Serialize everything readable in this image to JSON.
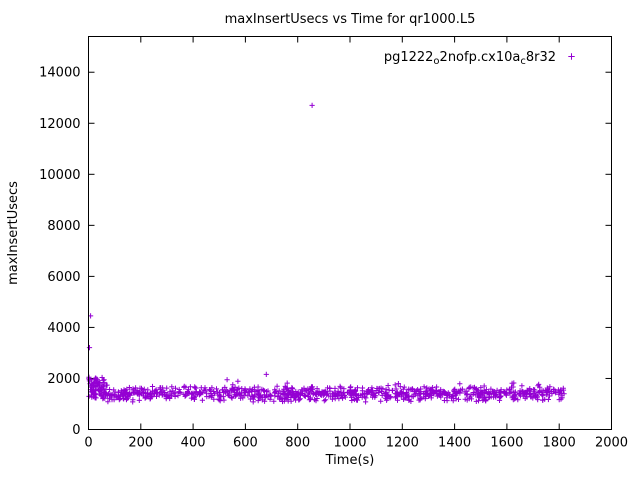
{
  "title": "maxInsertUsecs vs Time for qr1000.L5",
  "axes": {
    "xlabel": "Time(s)",
    "ylabel": "maxInsertUsecs",
    "xlim": [
      0,
      2000
    ],
    "ylim": [
      0,
      15400
    ],
    "xticks": [
      0,
      200,
      400,
      600,
      800,
      1000,
      1200,
      1400,
      1600,
      1800,
      2000
    ],
    "yticks": [
      0,
      2000,
      4000,
      6000,
      8000,
      10000,
      12000,
      14000
    ]
  },
  "legend": {
    "label_plain": "pg1222_o2nofp.cx10a_c8r32",
    "segments": [
      {
        "text": "pg1222",
        "sub": false
      },
      {
        "text": "o",
        "sub": true
      },
      {
        "text": "2nofp.cx10a",
        "sub": false
      },
      {
        "text": "c",
        "sub": true
      },
      {
        "text": "8r32",
        "sub": false
      }
    ],
    "marker": "plus",
    "position": "top-right"
  },
  "style": {
    "point_color": "#9400d3",
    "axis_color": "#000000",
    "background": "#ffffff"
  },
  "chart_data": {
    "type": "scatter",
    "title": "maxInsertUsecs vs Time for qr1000.L5",
    "xlabel": "Time(s)",
    "ylabel": "maxInsertUsecs",
    "xlim": [
      0,
      2000
    ],
    "ylim": [
      0,
      15400
    ],
    "grid": false,
    "legend_position": "top-right-inside",
    "series": [
      {
        "name": "pg1222_o2nofp.cx10a_c8r32",
        "color": "#9400d3",
        "marker": "plus",
        "outliers": [
          [
            855,
            12700
          ],
          [
            8,
            4450
          ],
          [
            4,
            3210
          ],
          [
            680,
            2160
          ],
          [
            530,
            1950
          ],
          [
            2,
            2050
          ],
          [
            6,
            1960
          ],
          [
            12,
            1900
          ],
          [
            760,
            1820
          ],
          [
            1185,
            1800
          ],
          [
            1420,
            1790
          ],
          [
            1620,
            1810
          ]
        ],
        "early_cluster": {
          "x_range": [
            0,
            70
          ],
          "y_range": [
            1500,
            2050
          ],
          "count": 45,
          "seed": 11
        },
        "band": {
          "x_range": [
            0,
            1822
          ],
          "y_center": 1400,
          "y_half_spread": 330,
          "y_min": 1080,
          "top_fuzz_prob": 0.08,
          "top_fuzz_max": 260,
          "count": 950,
          "seed": 7,
          "note": "dense noisy horizontal band, typical y 1150-1800 usec across whole run"
        }
      }
    ]
  }
}
